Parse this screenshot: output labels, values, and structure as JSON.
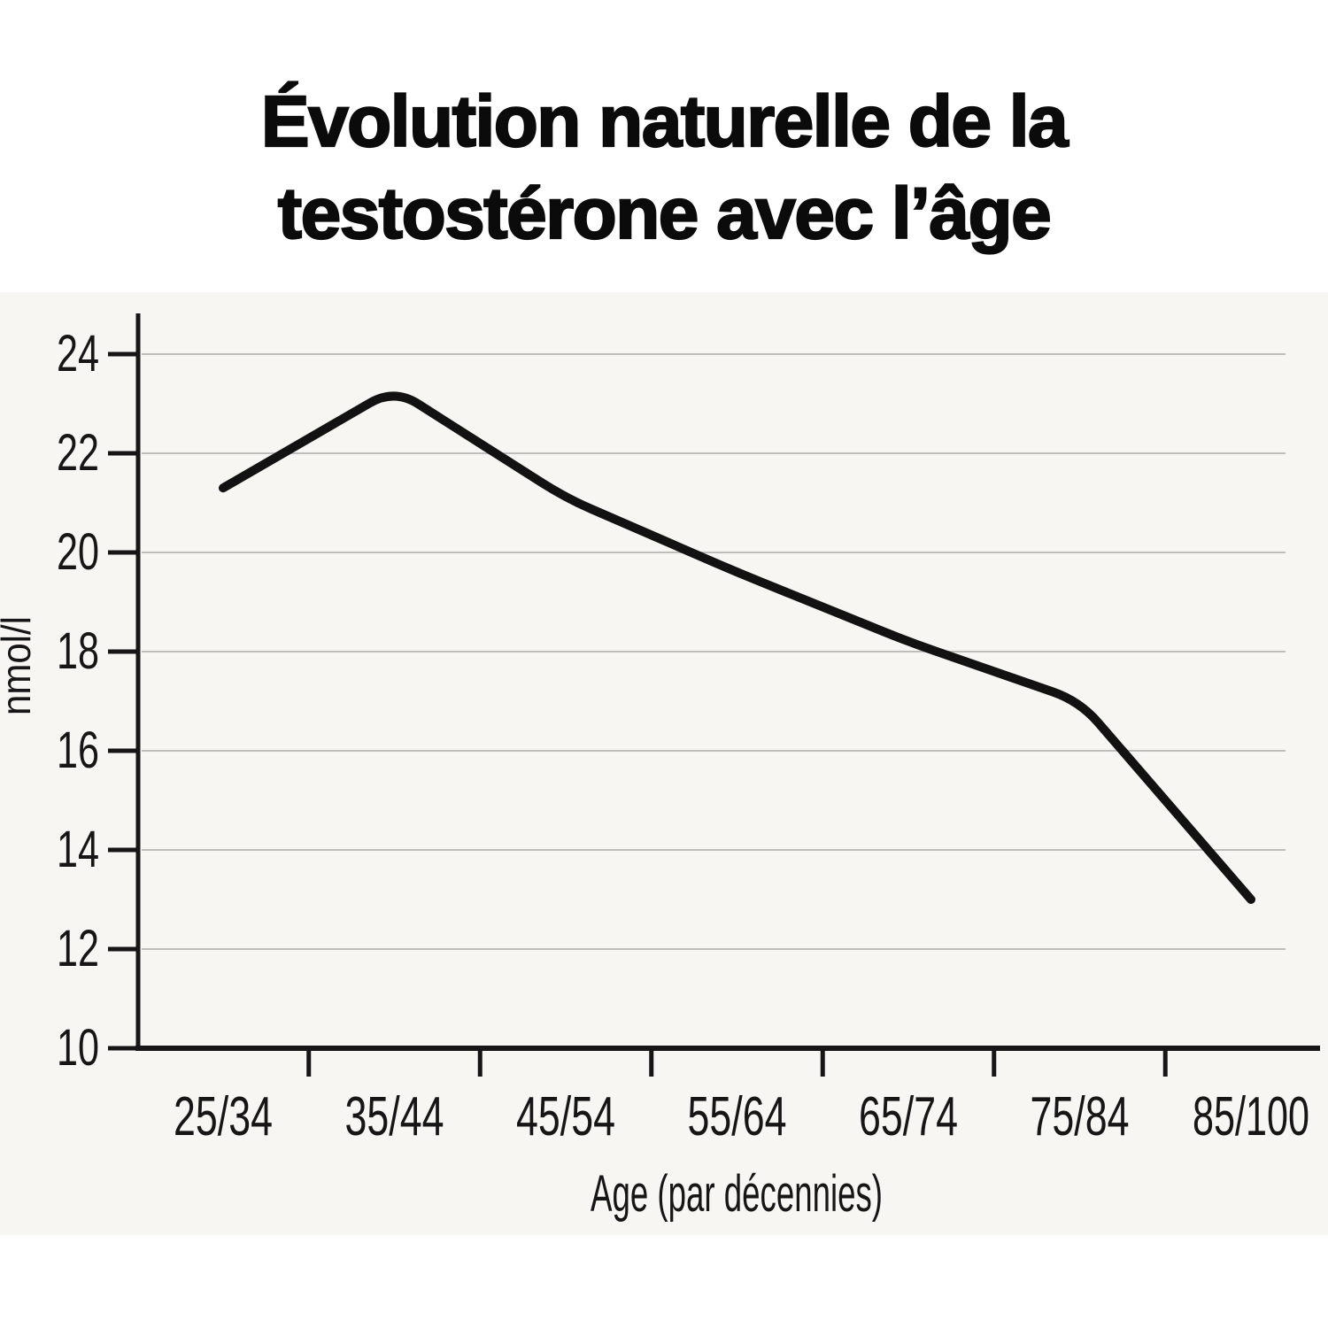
{
  "header": {
    "line1": "Évolution naturelle de la",
    "line2": "testostérone avec l’âge"
  },
  "chart_data": {
    "type": "line",
    "title": "Évolution naturelle de la testostérone avec l’âge",
    "categories": [
      "25/34",
      "35/44",
      "45/54",
      "55/64",
      "65/74",
      "75/84",
      "85/100"
    ],
    "values": [
      21.3,
      23.3,
      21.1,
      19.6,
      18.2,
      17.0,
      13.0
    ],
    "xlabel": "Age (par décennies)",
    "ylabel": "nmol/l",
    "ylim": [
      10,
      24
    ],
    "yticks": [
      10,
      12,
      14,
      16,
      18,
      20,
      22,
      24
    ],
    "grid": "horizontal",
    "legend": "none",
    "colors": {
      "line": "#121212",
      "axis": "#161616",
      "grid": "#bfbebc",
      "text": "#161616",
      "plot_background": "#f7f6f3",
      "page_background": "#ffffff",
      "title_text": "#0b0b0b"
    }
  }
}
